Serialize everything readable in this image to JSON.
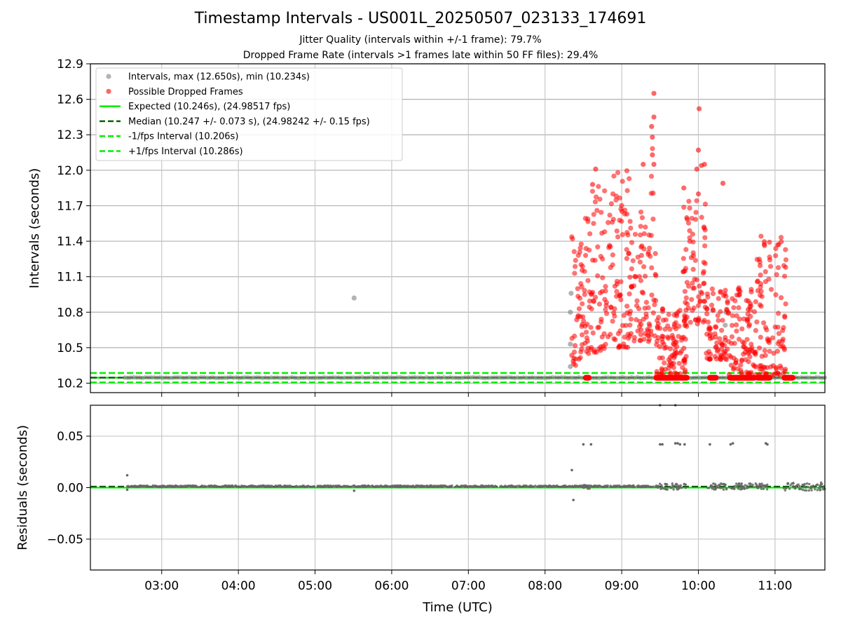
{
  "chart_data": [
    {
      "type": "scatter",
      "title": "Timestamp Intervals - US001L_20250507_023133_174691",
      "subtitle_lines": [
        "Jitter Quality (intervals within +/-1 frame): 79.7%",
        "Dropped Frame Rate (intervals >1 frames late within 50 FF files): 29.4%"
      ],
      "xlabel": "",
      "ylabel": "Intervals (seconds)",
      "x_unit": "hours (UTC)",
      "xlim": [
        2.07,
        11.65
      ],
      "ylim": [
        10.12,
        12.9
      ],
      "grid": true,
      "legend_position": "upper-left",
      "y_ticks": [
        "10.2",
        "10.5",
        "10.8",
        "11.1",
        "11.4",
        "11.7",
        "12.0",
        "12.3",
        "12.6",
        "12.9"
      ],
      "x_ticks": [
        "03:00",
        "04:00",
        "05:00",
        "06:00",
        "07:00",
        "08:00",
        "09:00",
        "10:00",
        "11:00"
      ],
      "series": [
        {
          "name": "Intervals, max (12.650s), min (10.234s)",
          "kind": "points",
          "color": "#808080",
          "baseline": {
            "value": 10.246,
            "x_range": [
              2.52,
              11.65
            ]
          },
          "points": [
            {
              "x": 5.51,
              "y": 10.92
            },
            {
              "x": 8.34,
              "y": 10.96
            },
            {
              "x": 8.33,
              "y": 10.8
            },
            {
              "x": 8.33,
              "y": 10.53
            },
            {
              "x": 8.33,
              "y": 10.34
            },
            {
              "x": 10.35,
              "y": 10.69
            },
            {
              "x": 10.36,
              "y": 10.8
            }
          ]
        },
        {
          "name": "Possible Dropped Frames",
          "kind": "points",
          "color": "#ff0000",
          "clusters": [
            {
              "x_range": [
                8.34,
                8.52
              ],
              "y_range": [
                10.35,
                11.45
              ]
            },
            {
              "x_range": [
                8.52,
                8.8
              ],
              "y_range": [
                10.45,
                11.9
              ]
            },
            {
              "x_range": [
                8.8,
                9.1
              ],
              "y_range": [
                10.5,
                12.0
              ]
            },
            {
              "x_range": [
                9.1,
                9.38
              ],
              "y_range": [
                10.55,
                11.7
              ]
            },
            {
              "x_range": [
                9.38,
                9.45
              ],
              "y_range": [
                10.6,
                12.45
              ]
            },
            {
              "x_range": [
                9.45,
                9.85
              ],
              "y_range": [
                10.27,
                10.85
              ]
            },
            {
              "x_range": [
                9.8,
                10.1
              ],
              "y_range": [
                10.7,
                11.8
              ]
            },
            {
              "x_range": [
                10.1,
                10.4
              ],
              "y_range": [
                10.4,
                11.0
              ]
            },
            {
              "x_range": [
                10.4,
                10.75
              ],
              "y_range": [
                10.27,
                11.1
              ]
            },
            {
              "x_range": [
                10.75,
                11.15
              ],
              "y_range": [
                10.27,
                11.45
              ]
            }
          ],
          "highlight_points": [
            {
              "x": 9.42,
              "y": 12.65
            },
            {
              "x": 9.42,
              "y": 12.45
            },
            {
              "x": 9.39,
              "y": 12.37
            },
            {
              "x": 9.4,
              "y": 12.28
            },
            {
              "x": 9.4,
              "y": 12.13
            },
            {
              "x": 9.42,
              "y": 12.05
            },
            {
              "x": 10.01,
              "y": 12.52
            },
            {
              "x": 10.0,
              "y": 12.17
            },
            {
              "x": 9.81,
              "y": 11.85
            },
            {
              "x": 9.98,
              "y": 12.01
            },
            {
              "x": 10.08,
              "y": 12.05
            },
            {
              "x": 10.04,
              "y": 12.04
            },
            {
              "x": 9.28,
              "y": 12.05
            },
            {
              "x": 8.66,
              "y": 12.01
            },
            {
              "x": 8.62,
              "y": 11.88
            },
            {
              "x": 10.32,
              "y": 11.89
            },
            {
              "x": 10.0,
              "y": 11.8
            }
          ],
          "baseline_runs": [
            [
              8.53,
              8.57
            ],
            [
              9.45,
              9.85
            ],
            [
              10.15,
              10.23
            ],
            [
              10.41,
              10.73
            ],
            [
              10.77,
              10.93
            ],
            [
              11.12,
              11.23
            ]
          ],
          "baseline_value": 10.246
        },
        {
          "name": "Expected (10.246s), (24.98517 fps)",
          "kind": "hline",
          "value": 10.246,
          "color": "#00ee00",
          "dash": "solid"
        },
        {
          "name": "Median (10.247 +/- 0.073 s), (24.98242 +/- 0.15 fps)",
          "kind": "hline",
          "value": 10.247,
          "color": "#006400",
          "dash": "dashed"
        },
        {
          "name": "-1/fps Interval (10.206s)",
          "kind": "hline",
          "value": 10.206,
          "color": "#00ee00",
          "dash": "dashed"
        },
        {
          "name": "+1/fps Interval (10.286s)",
          "kind": "hline",
          "value": 10.286,
          "color": "#00ee00",
          "dash": "dashed"
        }
      ]
    },
    {
      "type": "scatter",
      "title": "",
      "xlabel": "Time (UTC)",
      "ylabel": "Residuals (seconds)",
      "x_unit": "hours (UTC)",
      "xlim": [
        2.07,
        11.65
      ],
      "ylim": [
        -0.08,
        0.08
      ],
      "grid": true,
      "y_ticks": [
        "−0.05",
        "0.00",
        "0.05"
      ],
      "x_ticks": [
        "03:00",
        "04:00",
        "05:00",
        "06:00",
        "07:00",
        "08:00",
        "09:00",
        "10:00",
        "11:00"
      ],
      "reference_lines": [
        {
          "value": 0.0,
          "color": "#00ee00",
          "dash": "solid"
        },
        {
          "value": 0.001,
          "color": "#006400",
          "dash": "dashed"
        }
      ],
      "points_color": "#666666",
      "points": [
        {
          "x": 2.55,
          "y": 0.012
        },
        {
          "x": 2.55,
          "y": -0.002
        },
        {
          "x": 5.51,
          "y": -0.003
        },
        {
          "x": 8.35,
          "y": 0.017
        },
        {
          "x": 8.37,
          "y": -0.012
        },
        {
          "x": 8.5,
          "y": 0.042
        },
        {
          "x": 8.6,
          "y": 0.042
        },
        {
          "x": 9.5,
          "y": 0.042
        },
        {
          "x": 9.53,
          "y": 0.042
        },
        {
          "x": 9.7,
          "y": 0.043
        },
        {
          "x": 9.73,
          "y": 0.043
        },
        {
          "x": 9.76,
          "y": 0.042
        },
        {
          "x": 9.82,
          "y": 0.042
        },
        {
          "x": 10.15,
          "y": 0.042
        },
        {
          "x": 10.42,
          "y": 0.042
        },
        {
          "x": 10.45,
          "y": 0.043
        },
        {
          "x": 10.88,
          "y": 0.043
        },
        {
          "x": 10.9,
          "y": 0.042
        },
        {
          "x": 9.5,
          "y": 0.08
        },
        {
          "x": 9.7,
          "y": 0.08
        }
      ],
      "dense_band": [
        {
          "x_range": [
            2.55,
            9.45
          ],
          "y_range": [
            0.0005,
            0.002
          ]
        },
        {
          "x_range": [
            8.5,
            8.58
          ],
          "y_range": [
            -0.002,
            0.003
          ]
        },
        {
          "x_range": [
            9.45,
            9.85
          ],
          "y_range": [
            -0.002,
            0.004
          ]
        },
        {
          "x_range": [
            10.12,
            10.9
          ],
          "y_range": [
            -0.002,
            0.004
          ]
        },
        {
          "x_range": [
            11.1,
            11.65
          ],
          "y_range": [
            -0.003,
            0.005
          ]
        }
      ]
    }
  ]
}
